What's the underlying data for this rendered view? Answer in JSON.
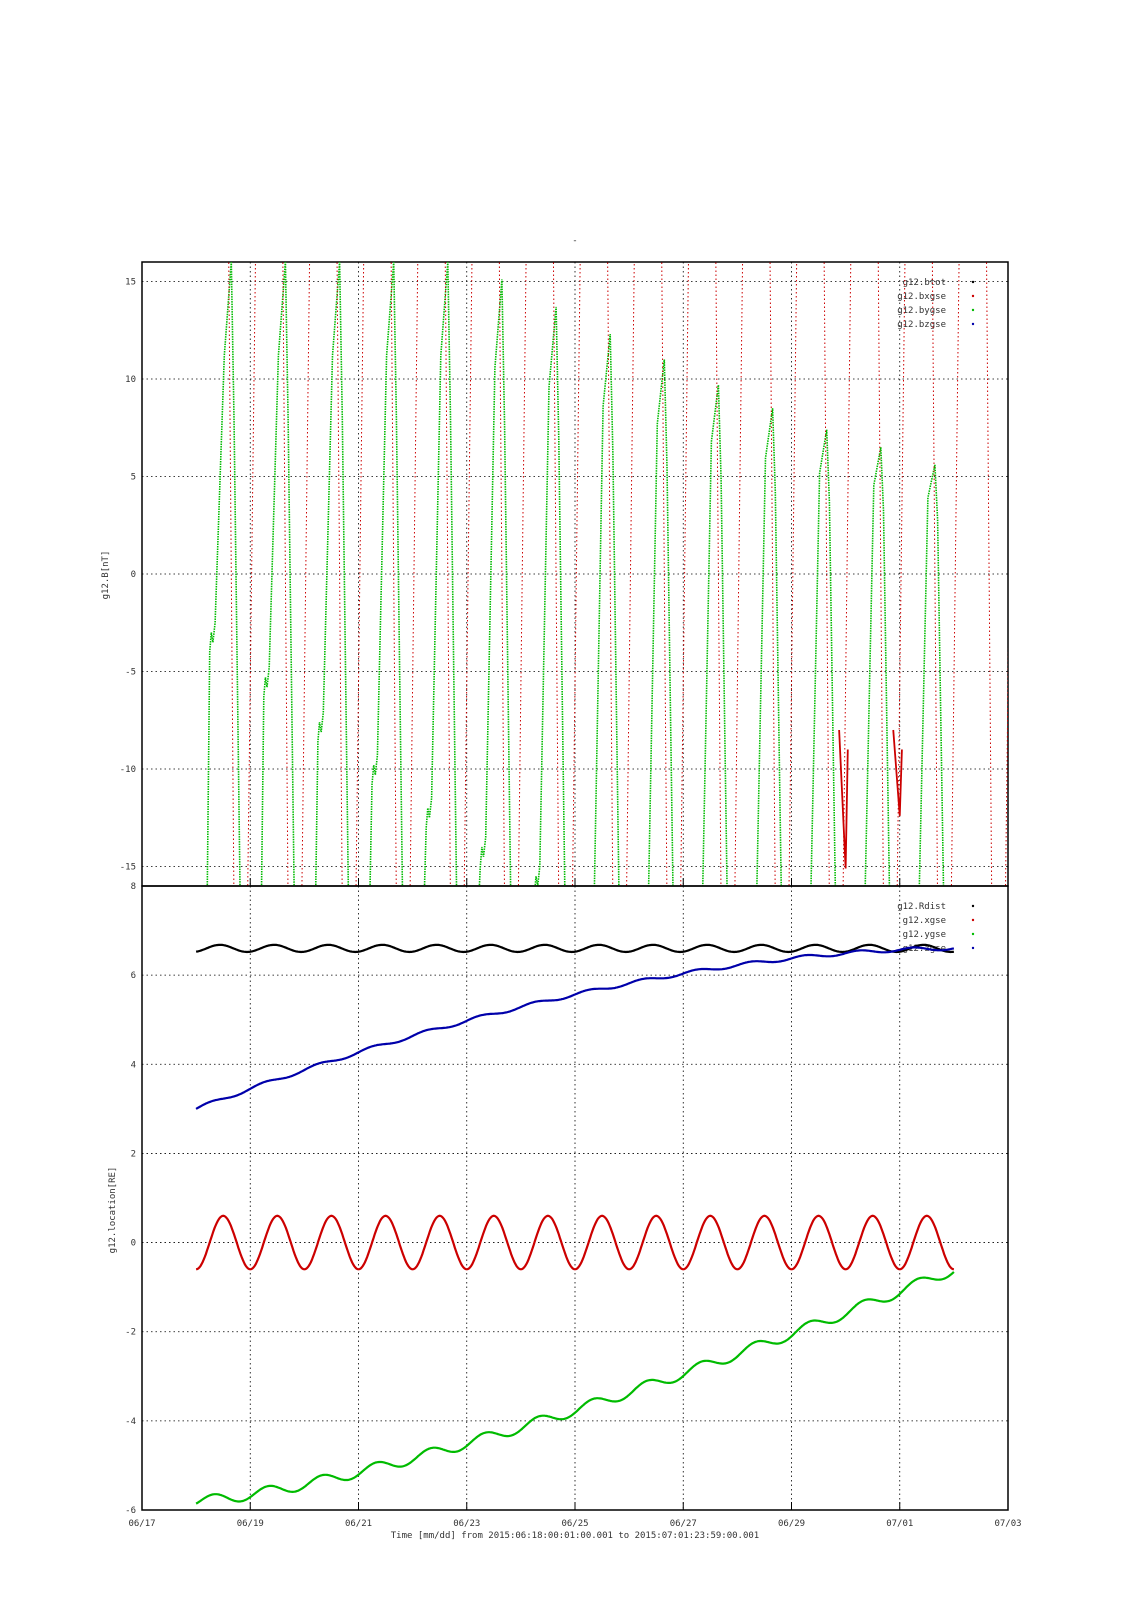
{
  "title": "-",
  "colors": {
    "btot": "#000000",
    "bx": "#cc0000",
    "by": "#00bb00",
    "bz": "#0000aa",
    "grid": "#000000"
  },
  "chart_data": [
    {
      "type": "line",
      "title": "-",
      "ylabel": "g12.B[nT]",
      "xlabel": "",
      "ylim": [
        -16,
        16
      ],
      "yticks": [
        15,
        10,
        5,
        0,
        -5,
        -10,
        -15
      ],
      "grid": true,
      "legend_position": "top-right",
      "legend": [
        "g12.btot",
        "g12.bxgse",
        "g12.bygse",
        "g12.bzgse"
      ],
      "x_range": [
        "06/17",
        "07/03"
      ],
      "series": [
        {
          "name": "g12.bygse",
          "color": "#00bb00",
          "description_values": {
            "peak_dates": [
              "06/18.6",
              "06/19.6",
              "06/20.6",
              "06/21.6",
              "06/22.6",
              "06/23.6",
              "06/24.6",
              "06/25.6",
              "06/26.6",
              "06/27.6",
              "06/28.6",
              "06/29.6",
              "06/30.6",
              "07/01.6"
            ],
            "peak_values": [
              16,
              16,
              16,
              16,
              16,
              15.1,
              13.7,
              12.3,
              11.0,
              9.7,
              8.5,
              7.4,
              6.5,
              5.6
            ],
            "shoulder_values": [
              -3.0,
              -5.3,
              -7.6,
              -9.8,
              -12.0,
              -14.0,
              -15.5
            ]
          }
        },
        {
          "name": "g12.bxgse",
          "color": "#cc0000",
          "description_values": {
            "minimum_dates": [
              "06/30.0",
              "07/01.0"
            ],
            "minimum_values": [
              -15.1,
              -12.4
            ]
          }
        }
      ]
    },
    {
      "type": "line",
      "ylabel": "g12.location[RE]",
      "xlabel": "Time [mm/dd]  from 2015:06:18:00:01:00.001  to  2015:07:01:23:59:00.001",
      "ylim": [
        -6,
        8
      ],
      "yticks": [
        8,
        6,
        4,
        2,
        0,
        -2,
        -4,
        -6
      ],
      "xticks": [
        "06/17",
        "06/19",
        "06/21",
        "06/23",
        "06/25",
        "06/27",
        "06/29",
        "07/01",
        "07/03"
      ],
      "grid": true,
      "legend_position": "top-right",
      "legend": [
        "g12.Rdist",
        "g12.xgse",
        "g12.ygse",
        "g12.zgse"
      ],
      "series": [
        {
          "name": "g12.Rdist",
          "color": "#000000",
          "x_days_from": "06/18",
          "x_range": [
            "06/18",
            "07/02"
          ],
          "mean": 6.6,
          "amplitude": 0.08
        },
        {
          "name": "g12.xgse",
          "color": "#cc0000",
          "x_range": [
            "06/18",
            "07/02"
          ],
          "mean": 0,
          "amplitude": 0.6
        },
        {
          "name": "g12.ygse",
          "color": "#0000aa",
          "x_range": [
            "06/18",
            "07/02"
          ],
          "start": 3.0,
          "end": 6.6
        },
        {
          "name": "g12.zgse",
          "color": "#00bb00",
          "x_range": [
            "06/18",
            "07/02"
          ],
          "start": -5.8,
          "end": -0.6
        }
      ]
    }
  ]
}
